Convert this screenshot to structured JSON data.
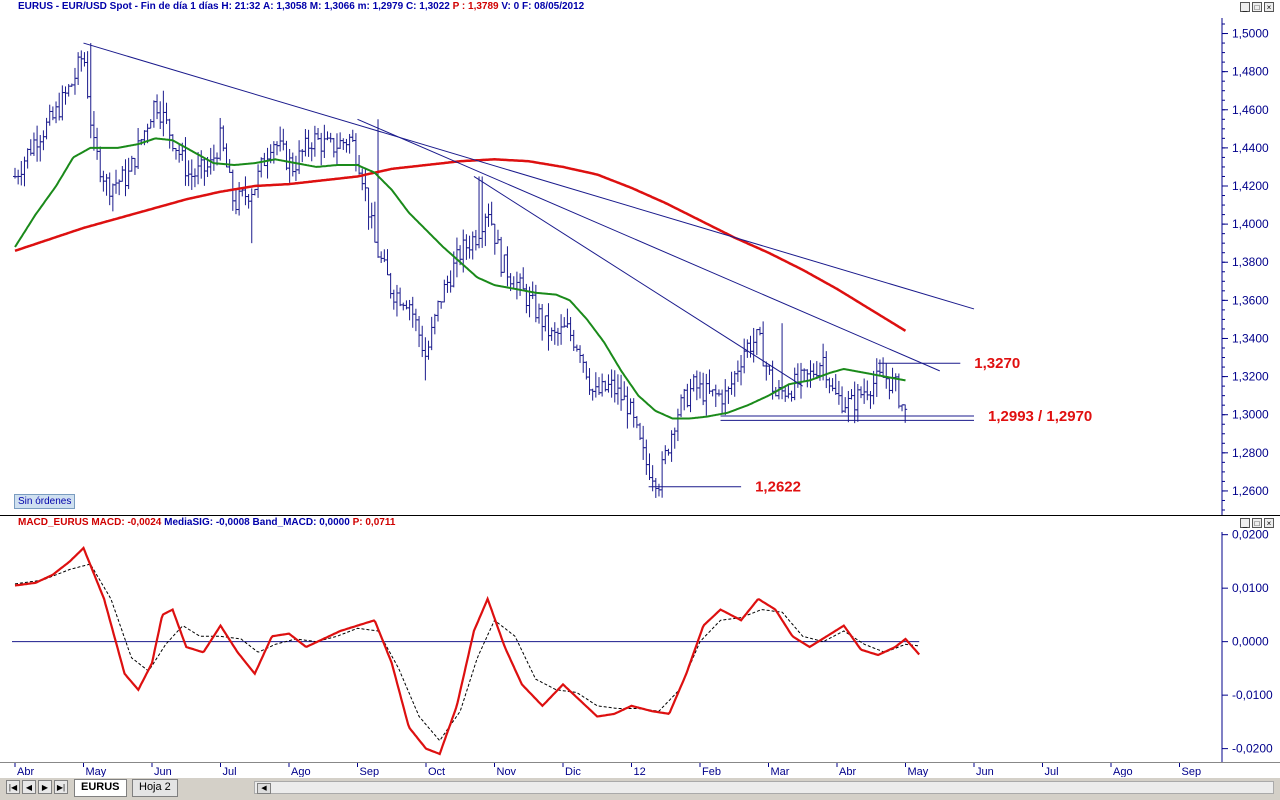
{
  "window": {
    "symbol": "EURUS",
    "header_main_prefix": "EURUS - EUR/USD Spot - Fin de día 1 días",
    "header_h": "H: 21:32",
    "header_a": "A: 1,3058",
    "header_m": "M: 1,3066",
    "header_min": "m: 1,2979",
    "header_c": "C: 1,3022",
    "header_p": "P : 1,3789",
    "header_v": "V: 0",
    "header_f": "F: 08/05/2012",
    "orders_label": "Sin órdenes",
    "macd_prefix": "MACD_EURUS",
    "macd_value": "MACD: -0,0024",
    "macd_signal": "MediaSIG: -0,0008",
    "macd_band": "Band_MACD: 0,0000",
    "macd_p": "P: 0,0711",
    "tabs": [
      "EURUS",
      "Hoja 2"
    ]
  },
  "colors": {
    "bars": "#1a1a8c",
    "sma_short": "#1a8a1a",
    "sma_long": "#dd1010",
    "trendline": "#1a1a8c",
    "level_label": "#e01010",
    "macd_line": "#dd1010",
    "signal_line": "#000000"
  },
  "chart_data": [
    {
      "type": "ohlc",
      "ylim": [
        1.25,
        1.505
      ],
      "y_ticks": [
        "1,5000",
        "1,4800",
        "1,4600",
        "1,4400",
        "1,4200",
        "1,4000",
        "1,3800",
        "1,3600",
        "1,3400",
        "1,3200",
        "1,3000",
        "1,2800",
        "1,2600"
      ],
      "y_tick_values": [
        1.5,
        1.48,
        1.46,
        1.44,
        1.42,
        1.4,
        1.38,
        1.36,
        1.34,
        1.32,
        1.3,
        1.28,
        1.26
      ],
      "x_months": [
        "Abr",
        "May",
        "Jun",
        "Jul",
        "Ago",
        "Sep",
        "Oct",
        "Nov",
        "Dic",
        "12",
        "Feb",
        "Mar",
        "Abr",
        "May",
        "Jun",
        "Jul",
        "Ago",
        "Sep"
      ],
      "x_month_index": [
        0,
        1,
        2,
        3,
        4,
        5,
        6,
        7,
        8,
        9,
        10,
        11,
        12,
        13,
        14,
        15,
        16,
        17
      ],
      "price_anchors": [
        [
          0,
          1.425
        ],
        [
          0.3,
          1.445
        ],
        [
          0.55,
          1.455
        ],
        [
          0.85,
          1.475
        ],
        [
          1.0,
          1.49
        ],
        [
          1.15,
          1.44
        ],
        [
          1.35,
          1.42
        ],
        [
          1.65,
          1.425
        ],
        [
          1.9,
          1.45
        ],
        [
          2.05,
          1.465
        ],
        [
          2.3,
          1.445
        ],
        [
          2.55,
          1.425
        ],
        [
          2.85,
          1.43
        ],
        [
          3.0,
          1.445
        ],
        [
          3.2,
          1.41
        ],
        [
          3.5,
          1.42
        ],
        [
          3.75,
          1.445
        ],
        [
          4.05,
          1.43
        ],
        [
          4.35,
          1.445
        ],
        [
          4.6,
          1.44
        ],
        [
          4.9,
          1.445
        ],
        [
          5.05,
          1.43
        ],
        [
          5.25,
          1.39
        ],
        [
          5.5,
          1.365
        ],
        [
          5.75,
          1.36
        ],
        [
          6.0,
          1.33
        ],
        [
          6.2,
          1.36
        ],
        [
          6.5,
          1.385
        ],
        [
          6.75,
          1.395
        ],
        [
          6.9,
          1.41
        ],
        [
          7.1,
          1.38
        ],
        [
          7.4,
          1.365
        ],
        [
          7.6,
          1.355
        ],
        [
          7.85,
          1.34
        ],
        [
          8.05,
          1.345
        ],
        [
          8.25,
          1.335
        ],
        [
          8.45,
          1.31
        ],
        [
          8.7,
          1.315
        ],
        [
          8.95,
          1.305
        ],
        [
          9.2,
          1.275
        ],
        [
          9.4,
          1.265
        ],
        [
          9.65,
          1.3
        ],
        [
          9.9,
          1.315
        ],
        [
          10.15,
          1.31
        ],
        [
          10.4,
          1.31
        ],
        [
          10.65,
          1.335
        ],
        [
          10.85,
          1.34
        ],
        [
          11.1,
          1.31
        ],
        [
          11.35,
          1.315
        ],
        [
          11.6,
          1.32
        ],
        [
          11.8,
          1.33
        ],
        [
          11.95,
          1.31
        ],
        [
          12.2,
          1.305
        ],
        [
          12.45,
          1.315
        ],
        [
          12.7,
          1.32
        ],
        [
          12.85,
          1.315
        ],
        [
          13.0,
          1.3
        ]
      ],
      "highlight_highs": [
        [
          1.1,
          1.495
        ],
        [
          2.15,
          1.47
        ],
        [
          5.3,
          1.455
        ],
        [
          6.8,
          1.425
        ],
        [
          11.2,
          1.348
        ]
      ],
      "lows": [
        [
          3.45,
          1.39
        ],
        [
          6.0,
          1.318
        ],
        [
          9.45,
          1.262
        ]
      ],
      "sma_short_anchors": [
        [
          0,
          1.388
        ],
        [
          0.3,
          1.405
        ],
        [
          0.6,
          1.42
        ],
        [
          0.85,
          1.435
        ],
        [
          1.1,
          1.44
        ],
        [
          1.5,
          1.44
        ],
        [
          1.8,
          1.442
        ],
        [
          2.05,
          1.445
        ],
        [
          2.3,
          1.444
        ],
        [
          2.6,
          1.438
        ],
        [
          2.9,
          1.432
        ],
        [
          3.2,
          1.431
        ],
        [
          3.5,
          1.432
        ],
        [
          3.8,
          1.434
        ],
        [
          4.1,
          1.432
        ],
        [
          4.4,
          1.43
        ],
        [
          4.7,
          1.431
        ],
        [
          5.0,
          1.431
        ],
        [
          5.25,
          1.427
        ],
        [
          5.5,
          1.418
        ],
        [
          5.75,
          1.406
        ],
        [
          6.0,
          1.397
        ],
        [
          6.25,
          1.388
        ],
        [
          6.5,
          1.38
        ],
        [
          6.75,
          1.372
        ],
        [
          7.0,
          1.368
        ],
        [
          7.3,
          1.366
        ],
        [
          7.6,
          1.364
        ],
        [
          7.9,
          1.363
        ],
        [
          8.1,
          1.36
        ],
        [
          8.35,
          1.35
        ],
        [
          8.6,
          1.338
        ],
        [
          8.85,
          1.323
        ],
        [
          9.1,
          1.31
        ],
        [
          9.35,
          1.302
        ],
        [
          9.6,
          1.298
        ],
        [
          9.85,
          1.298
        ],
        [
          10.1,
          1.299
        ],
        [
          10.4,
          1.301
        ],
        [
          10.7,
          1.305
        ],
        [
          11.0,
          1.31
        ],
        [
          11.3,
          1.316
        ],
        [
          11.6,
          1.318
        ],
        [
          11.9,
          1.322
        ],
        [
          12.1,
          1.324
        ],
        [
          12.4,
          1.322
        ],
        [
          12.7,
          1.32
        ],
        [
          13.0,
          1.318
        ]
      ],
      "sma_long_anchors": [
        [
          0,
          1.386
        ],
        [
          0.5,
          1.392
        ],
        [
          1.0,
          1.398
        ],
        [
          1.5,
          1.403
        ],
        [
          2.0,
          1.408
        ],
        [
          2.5,
          1.413
        ],
        [
          3.0,
          1.417
        ],
        [
          3.5,
          1.42
        ],
        [
          4.0,
          1.421
        ],
        [
          4.5,
          1.423
        ],
        [
          5.0,
          1.425
        ],
        [
          5.5,
          1.429
        ],
        [
          6.0,
          1.431
        ],
        [
          6.5,
          1.433
        ],
        [
          7.0,
          1.434
        ],
        [
          7.5,
          1.433
        ],
        [
          8.0,
          1.43
        ],
        [
          8.5,
          1.426
        ],
        [
          9.0,
          1.419
        ],
        [
          9.5,
          1.411
        ],
        [
          10.0,
          1.402
        ],
        [
          10.5,
          1.393
        ],
        [
          11.0,
          1.385
        ],
        [
          11.5,
          1.376
        ],
        [
          12.0,
          1.366
        ],
        [
          12.5,
          1.355
        ],
        [
          13.0,
          1.344
        ]
      ],
      "trendlines": [
        {
          "from": [
            1.0,
            1.495
          ],
          "to": [
            14.0,
            1.3555
          ]
        },
        {
          "from": [
            5.0,
            1.455
          ],
          "to": [
            13.5,
            1.323
          ]
        },
        {
          "from": [
            6.7,
            1.425
          ],
          "to": [
            11.5,
            1.315
          ]
        }
      ],
      "levels": [
        {
          "value": 1.327,
          "label": "1,3270",
          "x_from": 12.6,
          "x_to": 13.8
        },
        {
          "value": 1.2993,
          "label": "1,2993 / 1,2970",
          "x_from": 10.3,
          "x_to": 14.0
        },
        {
          "value": 1.297,
          "label": "",
          "x_from": 10.3,
          "x_to": 14.0
        },
        {
          "value": 1.2622,
          "label": "1,2622",
          "x_from": 9.25,
          "x_to": 10.6
        }
      ]
    },
    {
      "type": "line",
      "title": "MACD_EURUS",
      "ylim": [
        -0.0225,
        0.0205
      ],
      "y_ticks": [
        "0,0200",
        "0,0100",
        "0,0000",
        "-0,0100",
        "-0,0200"
      ],
      "y_tick_values": [
        0.02,
        0.01,
        0.0,
        -0.01,
        -0.02
      ],
      "macd_anchors": [
        [
          0,
          0.0105
        ],
        [
          0.3,
          0.011
        ],
        [
          0.55,
          0.0125
        ],
        [
          0.8,
          0.015
        ],
        [
          1.0,
          0.0175
        ],
        [
          1.3,
          0.008
        ],
        [
          1.6,
          -0.006
        ],
        [
          1.8,
          -0.009
        ],
        [
          2.0,
          -0.004
        ],
        [
          2.15,
          0.005
        ],
        [
          2.3,
          0.006
        ],
        [
          2.5,
          -0.001
        ],
        [
          2.75,
          -0.002
        ],
        [
          3.0,
          0.003
        ],
        [
          3.25,
          -0.002
        ],
        [
          3.5,
          -0.006
        ],
        [
          3.75,
          0.001
        ],
        [
          4.0,
          0.0015
        ],
        [
          4.25,
          -0.001
        ],
        [
          4.5,
          0.0005
        ],
        [
          4.75,
          0.002
        ],
        [
          5.0,
          0.003
        ],
        [
          5.25,
          0.004
        ],
        [
          5.5,
          -0.004
        ],
        [
          5.75,
          -0.016
        ],
        [
          6.0,
          -0.02
        ],
        [
          6.2,
          -0.021
        ],
        [
          6.45,
          -0.012
        ],
        [
          6.7,
          0.002
        ],
        [
          6.9,
          0.008
        ],
        [
          7.15,
          -0.001
        ],
        [
          7.4,
          -0.008
        ],
        [
          7.7,
          -0.012
        ],
        [
          8.0,
          -0.008
        ],
        [
          8.25,
          -0.011
        ],
        [
          8.5,
          -0.014
        ],
        [
          8.75,
          -0.0135
        ],
        [
          9.0,
          -0.012
        ],
        [
          9.3,
          -0.013
        ],
        [
          9.55,
          -0.0135
        ],
        [
          9.8,
          -0.006
        ],
        [
          10.05,
          0.003
        ],
        [
          10.3,
          0.006
        ],
        [
          10.6,
          0.004
        ],
        [
          10.85,
          0.008
        ],
        [
          11.1,
          0.006
        ],
        [
          11.35,
          0.001
        ],
        [
          11.6,
          -0.001
        ],
        [
          11.85,
          0.001
        ],
        [
          12.1,
          0.003
        ],
        [
          12.35,
          -0.0015
        ],
        [
          12.6,
          -0.0025
        ],
        [
          12.85,
          -0.001
        ],
        [
          13.0,
          0.0005
        ],
        [
          13.2,
          -0.0024
        ]
      ],
      "signal_anchors": [
        [
          0,
          0.0108
        ],
        [
          0.4,
          0.0115
        ],
        [
          0.8,
          0.0135
        ],
        [
          1.1,
          0.0145
        ],
        [
          1.4,
          0.008
        ],
        [
          1.7,
          -0.003
        ],
        [
          1.95,
          -0.0055
        ],
        [
          2.2,
          -0.0005
        ],
        [
          2.45,
          0.003
        ],
        [
          2.7,
          0.001
        ],
        [
          3.0,
          0.001
        ],
        [
          3.3,
          0.0005
        ],
        [
          3.55,
          -0.002
        ],
        [
          3.8,
          -0.0005
        ],
        [
          4.1,
          0.0005
        ],
        [
          4.4,
          0.0
        ],
        [
          4.7,
          0.001
        ],
        [
          5.0,
          0.0025
        ],
        [
          5.3,
          0.002
        ],
        [
          5.6,
          -0.005
        ],
        [
          5.9,
          -0.014
        ],
        [
          6.2,
          -0.0185
        ],
        [
          6.5,
          -0.013
        ],
        [
          6.75,
          -0.003
        ],
        [
          7.0,
          0.004
        ],
        [
          7.3,
          0.001
        ],
        [
          7.6,
          -0.007
        ],
        [
          7.9,
          -0.009
        ],
        [
          8.2,
          -0.0095
        ],
        [
          8.5,
          -0.012
        ],
        [
          8.8,
          -0.0125
        ],
        [
          9.1,
          -0.0125
        ],
        [
          9.4,
          -0.013
        ],
        [
          9.7,
          -0.009
        ],
        [
          10.0,
          0.0
        ],
        [
          10.3,
          0.004
        ],
        [
          10.6,
          0.0045
        ],
        [
          10.9,
          0.006
        ],
        [
          11.2,
          0.0055
        ],
        [
          11.5,
          0.001
        ],
        [
          11.8,
          0.0
        ],
        [
          12.1,
          0.002
        ],
        [
          12.4,
          -0.0005
        ],
        [
          12.7,
          -0.002
        ],
        [
          13.0,
          -0.0005
        ],
        [
          13.2,
          -0.0008
        ]
      ],
      "zero_line": 0.0
    }
  ]
}
